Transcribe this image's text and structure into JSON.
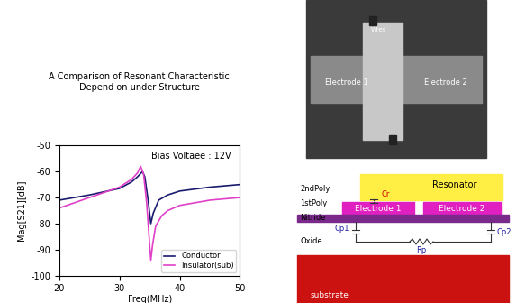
{
  "chart_data": {
    "type": "line",
    "title": "A Comparison of Resonant Characteristic\nDepend on under Structure",
    "annotation": "Bias Voltaee : 12V",
    "x_label": "Freq(MHz)",
    "y_label": "Mag[S21][dB]",
    "xlim": [
      20,
      50
    ],
    "xticks": [
      20,
      30,
      40,
      50
    ],
    "ylim": [
      -100,
      -50
    ],
    "yticks": [
      -100,
      -90,
      -80,
      -70,
      -60,
      -50
    ],
    "grid": false,
    "legend": "lower right",
    "series": [
      {
        "name": "Conductor",
        "color": "#1a1a6e",
        "line_style": "solid",
        "x": [
          20,
          25,
          30,
          32,
          33,
          33.8,
          34.2,
          34.8,
          35.2,
          35.6,
          36.5,
          38,
          40,
          45,
          50
        ],
        "values": [
          -71,
          -69,
          -66.5,
          -64,
          -62,
          -60,
          -62,
          -72,
          -80,
          -76,
          -71,
          -69,
          -67.5,
          -66,
          -65
        ]
      },
      {
        "name": "Insulator(sub)",
        "color": "#e040c8",
        "line_style": "solid",
        "x": [
          20,
          25,
          30,
          32,
          33,
          33.5,
          34,
          34.5,
          35,
          35.2,
          35.5,
          36,
          37,
          38,
          40,
          45,
          50
        ],
        "values": [
          -74,
          -70,
          -66,
          -63,
          -60.5,
          -58,
          -61,
          -72,
          -88,
          -94,
          -88,
          -81,
          -77,
          -75,
          -73,
          -71,
          -70
        ]
      }
    ]
  },
  "photo": {
    "width_label": "Wres",
    "electrodes": [
      "Electrode 1",
      "Electrode 2"
    ]
  },
  "diagram": {
    "layers": [
      "2ndPoly",
      "1stPoly",
      "Nitride",
      "Oxide"
    ],
    "resonator": "Resonator",
    "electrodes": [
      "Electrode 1",
      "Electrode 2"
    ],
    "substrate": "substrate",
    "components": [
      "Cr",
      "Cp1",
      "Cp2",
      "Rp"
    ]
  }
}
